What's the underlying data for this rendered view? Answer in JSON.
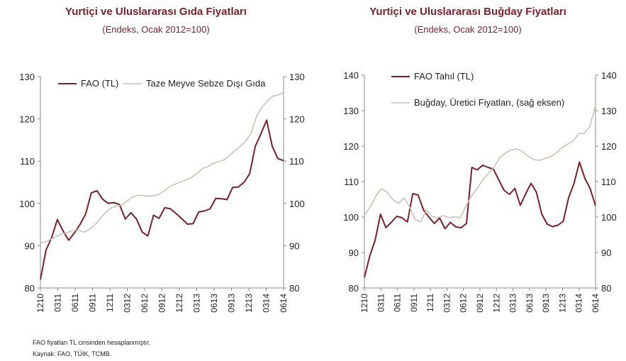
{
  "colors": {
    "primary": "#7b1f2a",
    "secondary": "#c8bfb0",
    "title": "#7b1f2a"
  },
  "footnote": "FAO fiyatları TL cinsinden hesaplanmıştır.",
  "source": "Kaynak: FAO, TÜİK, TCMB.",
  "chart_data": [
    {
      "type": "line",
      "title": "Yurtiçi ve Uluslararası Gıda Fiyatları",
      "subtitle": "(Endeks, Ocak 2012=100)",
      "xlabel": "",
      "ylabel": "",
      "ylim": [
        80,
        130
      ],
      "y2lim": [
        80,
        130
      ],
      "yticks": [
        80,
        90,
        100,
        110,
        120,
        130
      ],
      "y2ticks": [
        80,
        90,
        100,
        110,
        120,
        130
      ],
      "x_tick_labels": [
        "1210",
        "0311",
        "0611",
        "0911",
        "1211",
        "0312",
        "0612",
        "0912",
        "1212",
        "0313",
        "0613",
        "0913",
        "1213",
        "0314",
        "0614"
      ],
      "grid": false,
      "legend": "top-left",
      "series": [
        {
          "name": "FAO (TL)",
          "color": "#7b1f2a",
          "axis": "left",
          "values": [
            82,
            89,
            92,
            96.2,
            93.5,
            91.3,
            93,
            95,
            97.5,
            102.5,
            103,
            101,
            100,
            100.2,
            99.7,
            96.3,
            97.8,
            96.3,
            93.2,
            92.3,
            97.2,
            96.5,
            99,
            98.7,
            97.6,
            96.4,
            95.1,
            95.2,
            98,
            98.2,
            98.7,
            101.2,
            101.1,
            100.9,
            103.8,
            103.9,
            105,
            107,
            113.5,
            116.5,
            119.7,
            113.5,
            110.6,
            110.1
          ]
        },
        {
          "name": "Taze Meyve Sebze Dışı Gıda",
          "color": "#c8bfb0",
          "axis": "right",
          "values": [
            90.7,
            90.9,
            91.6,
            92.2,
            92.8,
            93.1,
            93.6,
            93.7,
            93.2,
            93.8,
            94.8,
            96.3,
            97.8,
            98.9,
            99.3,
            99.6,
            100.5,
            101.5,
            101.9,
            101.9,
            101.7,
            101.8,
            102.2,
            103,
            104.1,
            104.6,
            105.1,
            105.6,
            106.2,
            107.1,
            108.3,
            108.7,
            109.5,
            109.9,
            110.3,
            111.4,
            112.5,
            113.5,
            114.8,
            116.6,
            120.6,
            122.8,
            124.2,
            125.4,
            125.6,
            126.3
          ]
        }
      ]
    },
    {
      "type": "line",
      "title": "Yurtiçi ve Uluslararası Buğday Fiyatları",
      "subtitle": "(Endeks, Ocak 2012=100)",
      "xlabel": "",
      "ylabel": "",
      "ylim": [
        80,
        140
      ],
      "y2lim": [
        80,
        140
      ],
      "yticks": [
        80,
        90,
        100,
        110,
        120,
        130,
        140
      ],
      "y2ticks": [
        80,
        90,
        100,
        110,
        120,
        130,
        140
      ],
      "x_tick_labels": [
        "1210",
        "0311",
        "0611",
        "0911",
        "1211",
        "0312",
        "0612",
        "0912",
        "1212",
        "0313",
        "0613",
        "0913",
        "1213",
        "0314",
        "0614"
      ],
      "grid": false,
      "legend": "top-left",
      "series": [
        {
          "name": "FAO Tahıl (TL)",
          "color": "#7b1f2a",
          "axis": "left",
          "values": [
            83,
            89,
            93.5,
            100.8,
            97,
            98.5,
            100.2,
            99.8,
            98.6,
            106.6,
            106.2,
            102,
            100,
            98.2,
            99.7,
            96.7,
            98.5,
            97.2,
            97,
            98.2,
            114,
            113.3,
            114.6,
            114,
            113.5,
            110.5,
            107.5,
            106.4,
            108.1,
            103.3,
            106.5,
            109.5,
            107,
            100.8,
            98,
            97.3,
            97.7,
            98.8,
            105.5,
            109.5,
            115.5,
            111,
            108,
            103.2
          ]
        },
        {
          "name": "Buğday, Üretici Fiyatları, (sağ eksen)",
          "color": "#c8bfb0",
          "axis": "right",
          "values": [
            100.4,
            102.8,
            105.8,
            108,
            107,
            105,
            103.8,
            105.4,
            103,
            99.2,
            98.7,
            102,
            100.2,
            99.8,
            100.4,
            99.8,
            100.1,
            99.8,
            103,
            106,
            108,
            110.5,
            112.3,
            114,
            116.8,
            118,
            118.9,
            119.2,
            118.5,
            117.2,
            116.2,
            116,
            116.5,
            117,
            118,
            119.5,
            120.5,
            121.4,
            123.5,
            123.6,
            125.5,
            131.5
          ]
        }
      ]
    }
  ]
}
